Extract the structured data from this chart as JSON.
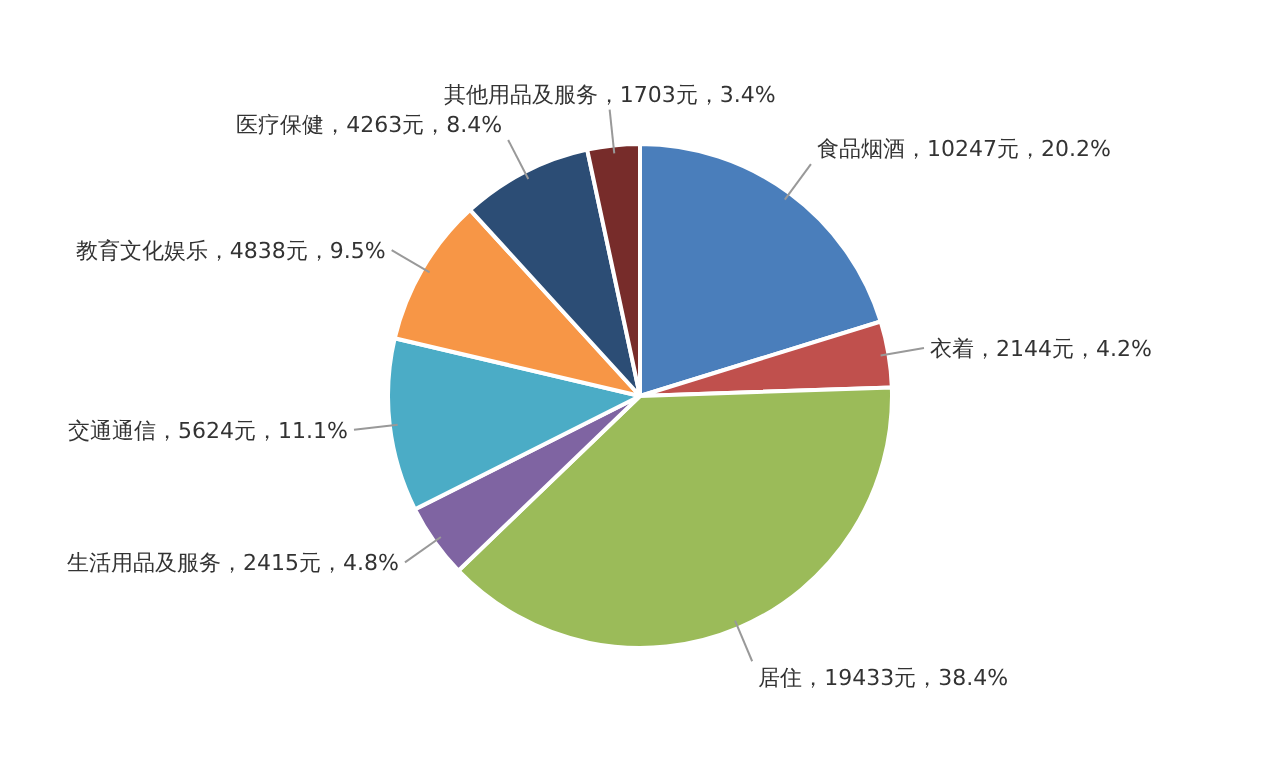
{
  "chart_data": {
    "type": "pie",
    "categories": [
      "食品烟酒",
      "衣着",
      "居住",
      "生活用品及服务",
      "交通通信",
      "教育文化娱乐",
      "医疗保健",
      "其他用品及服务"
    ],
    "values": [
      10247,
      2144,
      19433,
      2415,
      5624,
      4838,
      4263,
      1703
    ],
    "value_labels": [
      "10247元，20.2%",
      "2144元，4.2%",
      "19433元，38.4%",
      "2415元，4.8%",
      "5624元，11.1%",
      "4838元，9.5%",
      "4263元，8.4%",
      "1703元，3.4%"
    ],
    "colors": [
      "#4a7ebb",
      "#c0504d",
      "#9bbb59",
      "#7f64a2",
      "#4bacc6",
      "#f79646",
      "#2c4d75",
      "#772c2a"
    ],
    "legend": false
  }
}
